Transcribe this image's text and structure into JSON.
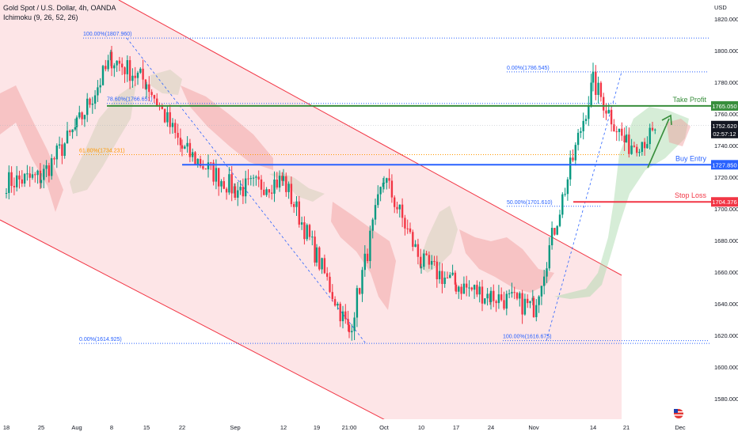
{
  "header": {
    "symbol_line": "Gold Spot / U.S. Dollar, 4h, OANDA",
    "indicator_line": "Ichimoku (9, 26, 52, 26)"
  },
  "currency_label": "USD",
  "colors": {
    "up": "#089981",
    "down": "#f23645",
    "channel_fill": "#f23645",
    "take_profit": "#388e3c",
    "buy_entry": "#2962ff",
    "stop_loss": "#f23645",
    "fib_line": "#2962ff",
    "fib_618": "#ff9800",
    "cloud_green": "#a5d6a7",
    "cloud_red": "#ef9a9a",
    "cloud_gray": "#d8d2c0",
    "price_tag": "#131722"
  },
  "chart_data": {
    "type": "candlestick",
    "title": "Gold Spot / U.S. Dollar, 4h, OANDA",
    "ylabel": "USD",
    "ylim": [
      1568,
      1832
    ],
    "price_ticks": [
      1820,
      1800,
      1780,
      1760,
      1740,
      1720,
      1700,
      1680,
      1660,
      1640,
      1620,
      1600,
      1580
    ],
    "price_tick_labels": [
      "1820.000",
      "1800.000",
      "1780.000",
      "1760.000",
      "1740.000",
      "1720.000",
      "1700.000",
      "1680.000",
      "1660.000",
      "1640.000",
      "1620.000",
      "1600.000",
      "1580.000"
    ],
    "time_labels": [
      "18",
      "25",
      "Aug",
      "8",
      "15",
      "22",
      "Sep",
      "12",
      "19",
      "21:00",
      "Oct",
      "10",
      "17",
      "24",
      "Nov",
      "14",
      "21",
      "Dec"
    ],
    "price_path": [
      [
        "18",
        1717
      ],
      [
        "25",
        1720
      ],
      [
        "Aug",
        1752
      ],
      [
        "8",
        1795
      ],
      [
        "15",
        1780
      ],
      [
        "22",
        1738
      ],
      [
        "Sep",
        1712
      ],
      [
        "12",
        1718
      ],
      [
        "19",
        1670
      ],
      [
        "21:00",
        1622
      ],
      [
        "Oct",
        1720
      ],
      [
        "10",
        1666
      ],
      [
        "17",
        1652
      ],
      [
        "24",
        1645
      ],
      [
        "Nov",
        1638
      ],
      [
        "14",
        1780
      ],
      [
        "21",
        1740
      ],
      [
        "Dec",
        1752
      ]
    ],
    "levels": [
      {
        "name": "Take Profit",
        "price": 1765.05,
        "tag": "1765.050"
      },
      {
        "name": "Buy Entry",
        "price": 1727.85,
        "tag": "1727.850"
      },
      {
        "name": "Stop Loss",
        "price": 1704.376,
        "tag": "1704.376"
      }
    ],
    "current_price": {
      "price": 1752.62,
      "tag": "1752.620",
      "countdown": "02:57:12"
    },
    "fib_left": [
      {
        "label": "100.00%(1807.960)",
        "price": 1807.96
      },
      {
        "label": "78.60%(1766.651)",
        "price": 1766.651
      },
      {
        "label": "61.80%(1734.231)",
        "price": 1734.231
      },
      {
        "label": "0.00%(1614.925)",
        "price": 1614.925
      }
    ],
    "fib_right": [
      {
        "label": "0.00%(1786.545)",
        "price": 1786.545
      },
      {
        "label": "50.00%(1701.610)",
        "price": 1701.61
      },
      {
        "label": "100.00%(1616.675)",
        "price": 1616.675
      }
    ],
    "grid": false
  }
}
